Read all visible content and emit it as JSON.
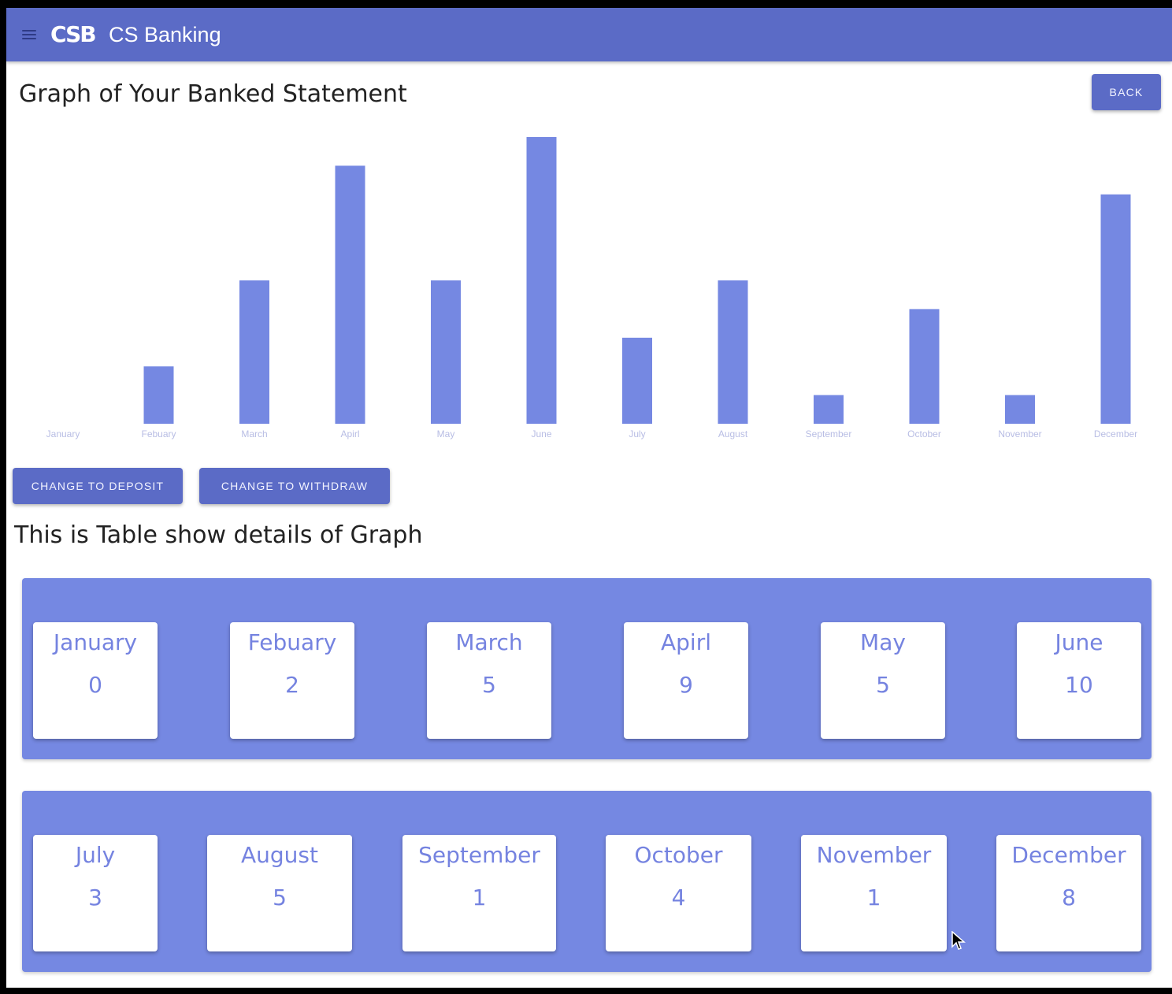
{
  "app": {
    "logo": "CSB",
    "title": "CS Banking"
  },
  "page": {
    "title": "Graph of Your Banked Statement",
    "back_label": "BACK"
  },
  "actions": {
    "deposit_label": "CHANGE TO DEPOSIT",
    "withdraw_label": "CHANGE TO WITHDRAW"
  },
  "table": {
    "title": "This is Table show details of Graph",
    "rows": [
      [
        {
          "month": "January",
          "value": "0"
        },
        {
          "month": "Febuary",
          "value": "2"
        },
        {
          "month": "March",
          "value": "5"
        },
        {
          "month": "Apirl",
          "value": "9"
        },
        {
          "month": "May",
          "value": "5"
        },
        {
          "month": "June",
          "value": "10"
        }
      ],
      [
        {
          "month": "July",
          "value": "3"
        },
        {
          "month": "August",
          "value": "5"
        },
        {
          "month": "September",
          "value": "1"
        },
        {
          "month": "October",
          "value": "4"
        },
        {
          "month": "November",
          "value": "1"
        },
        {
          "month": "December",
          "value": "8"
        }
      ]
    ]
  },
  "colors": {
    "primary": "#5b6bc6",
    "bar": "#7588e2",
    "panel": "#7588e2",
    "card_text": "#7583e0"
  },
  "icons": {
    "menu": "menu-icon",
    "cursor": "mouse-pointer-icon"
  },
  "chart_data": {
    "type": "bar",
    "categories": [
      "January",
      "Febuary",
      "March",
      "Apirl",
      "May",
      "June",
      "July",
      "August",
      "September",
      "October",
      "November",
      "December"
    ],
    "values": [
      0,
      2,
      5,
      9,
      5,
      10,
      3,
      5,
      1,
      4,
      1,
      8
    ],
    "ylim": [
      0,
      10
    ],
    "grid": false
  }
}
